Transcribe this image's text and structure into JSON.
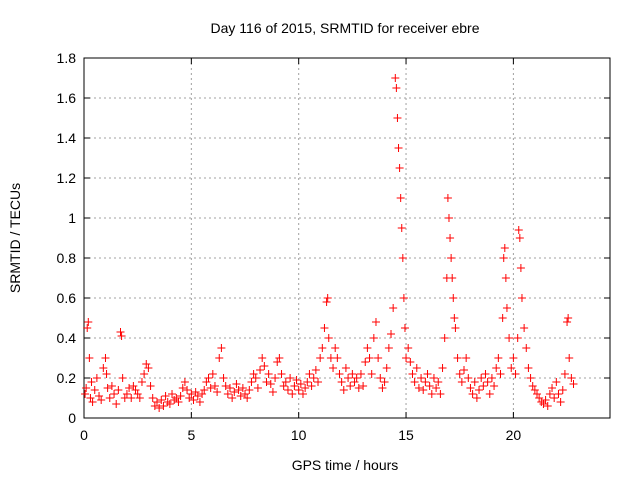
{
  "chart_data": {
    "type": "scatter",
    "title": "Day 116 of 2015, SRMTID for receiver ebre",
    "xlabel": "GPS time / hours",
    "ylabel": "SRMTID / TECUs",
    "xlim": [
      0,
      24.5
    ],
    "ylim": [
      0,
      1.8
    ],
    "xticks": [
      0,
      5,
      10,
      15,
      20
    ],
    "xtick_labels": [
      "0",
      "5",
      "10",
      "15",
      "20"
    ],
    "yticks": [
      0,
      0.2,
      0.4,
      0.6,
      0.8,
      1.0,
      1.2,
      1.4,
      1.6,
      1.8
    ],
    "ytick_labels": [
      "0",
      "0.2",
      "0.4",
      "0.6",
      "0.8",
      "1",
      "1.2",
      "1.4",
      "1.6",
      "1.8"
    ],
    "grid": true,
    "marker": "+",
    "color": "#ff0000",
    "series": [
      {
        "name": "SRMTID",
        "points": [
          [
            0.05,
            0.12
          ],
          [
            0.1,
            0.15
          ],
          [
            0.15,
            0.45
          ],
          [
            0.2,
            0.48
          ],
          [
            0.25,
            0.3
          ],
          [
            0.3,
            0.1
          ],
          [
            0.35,
            0.18
          ],
          [
            0.4,
            0.08
          ],
          [
            0.5,
            0.14
          ],
          [
            0.6,
            0.2
          ],
          [
            0.7,
            0.11
          ],
          [
            0.8,
            0.09
          ],
          [
            0.9,
            0.25
          ],
          [
            1.0,
            0.3
          ],
          [
            1.05,
            0.22
          ],
          [
            1.1,
            0.15
          ],
          [
            1.2,
            0.1
          ],
          [
            1.3,
            0.16
          ],
          [
            1.4,
            0.12
          ],
          [
            1.5,
            0.07
          ],
          [
            1.6,
            0.14
          ],
          [
            1.7,
            0.43
          ],
          [
            1.75,
            0.41
          ],
          [
            1.8,
            0.2
          ],
          [
            1.9,
            0.1
          ],
          [
            2.0,
            0.12
          ],
          [
            2.1,
            0.15
          ],
          [
            2.2,
            0.1
          ],
          [
            2.3,
            0.16
          ],
          [
            2.4,
            0.14
          ],
          [
            2.5,
            0.12
          ],
          [
            2.6,
            0.1
          ],
          [
            2.7,
            0.18
          ],
          [
            2.8,
            0.22
          ],
          [
            2.9,
            0.27
          ],
          [
            3.0,
            0.25
          ],
          [
            3.1,
            0.16
          ],
          [
            3.2,
            0.1
          ],
          [
            3.3,
            0.06
          ],
          [
            3.4,
            0.08
          ],
          [
            3.5,
            0.05
          ],
          [
            3.6,
            0.09
          ],
          [
            3.7,
            0.06
          ],
          [
            3.8,
            0.11
          ],
          [
            3.9,
            0.08
          ],
          [
            4.0,
            0.07
          ],
          [
            4.1,
            0.12
          ],
          [
            4.2,
            0.09
          ],
          [
            4.3,
            0.1
          ],
          [
            4.4,
            0.08
          ],
          [
            4.5,
            0.11
          ],
          [
            4.6,
            0.15
          ],
          [
            4.7,
            0.18
          ],
          [
            4.8,
            0.14
          ],
          [
            4.9,
            0.1
          ],
          [
            5.0,
            0.12
          ],
          [
            5.1,
            0.09
          ],
          [
            5.2,
            0.13
          ],
          [
            5.3,
            0.11
          ],
          [
            5.4,
            0.08
          ],
          [
            5.5,
            0.12
          ],
          [
            5.6,
            0.14
          ],
          [
            5.7,
            0.18
          ],
          [
            5.8,
            0.2
          ],
          [
            5.9,
            0.15
          ],
          [
            6.0,
            0.22
          ],
          [
            6.1,
            0.16
          ],
          [
            6.2,
            0.13
          ],
          [
            6.3,
            0.3
          ],
          [
            6.4,
            0.35
          ],
          [
            6.5,
            0.2
          ],
          [
            6.6,
            0.16
          ],
          [
            6.7,
            0.12
          ],
          [
            6.8,
            0.15
          ],
          [
            6.9,
            0.1
          ],
          [
            7.0,
            0.13
          ],
          [
            7.1,
            0.17
          ],
          [
            7.2,
            0.14
          ],
          [
            7.3,
            0.11
          ],
          [
            7.4,
            0.15
          ],
          [
            7.5,
            0.12
          ],
          [
            7.6,
            0.1
          ],
          [
            7.7,
            0.14
          ],
          [
            7.8,
            0.18
          ],
          [
            7.9,
            0.22
          ],
          [
            8.0,
            0.2
          ],
          [
            8.1,
            0.15
          ],
          [
            8.2,
            0.24
          ],
          [
            8.3,
            0.3
          ],
          [
            8.4,
            0.26
          ],
          [
            8.5,
            0.18
          ],
          [
            8.6,
            0.22
          ],
          [
            8.7,
            0.17
          ],
          [
            8.8,
            0.13
          ],
          [
            8.9,
            0.2
          ],
          [
            9.0,
            0.28
          ],
          [
            9.1,
            0.3
          ],
          [
            9.2,
            0.22
          ],
          [
            9.3,
            0.16
          ],
          [
            9.4,
            0.18
          ],
          [
            9.5,
            0.14
          ],
          [
            9.6,
            0.2
          ],
          [
            9.7,
            0.12
          ],
          [
            9.8,
            0.16
          ],
          [
            9.9,
            0.19
          ],
          [
            10.0,
            0.14
          ],
          [
            10.1,
            0.17
          ],
          [
            10.2,
            0.12
          ],
          [
            10.3,
            0.15
          ],
          [
            10.4,
            0.18
          ],
          [
            10.5,
            0.22
          ],
          [
            10.6,
            0.16
          ],
          [
            10.7,
            0.2
          ],
          [
            10.8,
            0.24
          ],
          [
            10.9,
            0.18
          ],
          [
            11.0,
            0.3
          ],
          [
            11.1,
            0.35
          ],
          [
            11.2,
            0.45
          ],
          [
            11.3,
            0.58
          ],
          [
            11.35,
            0.6
          ],
          [
            11.4,
            0.4
          ],
          [
            11.5,
            0.3
          ],
          [
            11.6,
            0.25
          ],
          [
            11.7,
            0.35
          ],
          [
            11.8,
            0.3
          ],
          [
            11.9,
            0.22
          ],
          [
            12.0,
            0.18
          ],
          [
            12.1,
            0.14
          ],
          [
            12.2,
            0.25
          ],
          [
            12.3,
            0.2
          ],
          [
            12.4,
            0.16
          ],
          [
            12.5,
            0.22
          ],
          [
            12.6,
            0.18
          ],
          [
            12.7,
            0.2
          ],
          [
            12.8,
            0.15
          ],
          [
            12.9,
            0.22
          ],
          [
            13.0,
            0.16
          ],
          [
            13.1,
            0.28
          ],
          [
            13.2,
            0.35
          ],
          [
            13.3,
            0.3
          ],
          [
            13.4,
            0.22
          ],
          [
            13.5,
            0.4
          ],
          [
            13.6,
            0.48
          ],
          [
            13.7,
            0.3
          ],
          [
            13.8,
            0.2
          ],
          [
            13.9,
            0.15
          ],
          [
            14.0,
            0.18
          ],
          [
            14.1,
            0.25
          ],
          [
            14.2,
            0.35
          ],
          [
            14.3,
            0.42
          ],
          [
            14.4,
            0.55
          ],
          [
            14.5,
            1.7
          ],
          [
            14.55,
            1.65
          ],
          [
            14.6,
            1.5
          ],
          [
            14.65,
            1.35
          ],
          [
            14.7,
            1.25
          ],
          [
            14.75,
            1.1
          ],
          [
            14.8,
            0.95
          ],
          [
            14.85,
            0.8
          ],
          [
            14.9,
            0.6
          ],
          [
            14.95,
            0.45
          ],
          [
            15.0,
            0.3
          ],
          [
            15.1,
            0.35
          ],
          [
            15.2,
            0.28
          ],
          [
            15.3,
            0.22
          ],
          [
            15.4,
            0.18
          ],
          [
            15.5,
            0.25
          ],
          [
            15.6,
            0.15
          ],
          [
            15.7,
            0.2
          ],
          [
            15.8,
            0.14
          ],
          [
            15.9,
            0.18
          ],
          [
            16.0,
            0.22
          ],
          [
            16.1,
            0.16
          ],
          [
            16.2,
            0.12
          ],
          [
            16.3,
            0.2
          ],
          [
            16.4,
            0.15
          ],
          [
            16.5,
            0.18
          ],
          [
            16.6,
            0.12
          ],
          [
            16.7,
            0.25
          ],
          [
            16.8,
            0.4
          ],
          [
            16.9,
            0.7
          ],
          [
            16.95,
            1.1
          ],
          [
            17.0,
            1.0
          ],
          [
            17.05,
            0.9
          ],
          [
            17.1,
            0.8
          ],
          [
            17.15,
            0.7
          ],
          [
            17.2,
            0.6
          ],
          [
            17.25,
            0.5
          ],
          [
            17.3,
            0.45
          ],
          [
            17.4,
            0.3
          ],
          [
            17.5,
            0.22
          ],
          [
            17.6,
            0.18
          ],
          [
            17.7,
            0.24
          ],
          [
            17.8,
            0.3
          ],
          [
            17.9,
            0.2
          ],
          [
            18.0,
            0.15
          ],
          [
            18.1,
            0.12
          ],
          [
            18.2,
            0.18
          ],
          [
            18.3,
            0.1
          ],
          [
            18.4,
            0.14
          ],
          [
            18.5,
            0.2
          ],
          [
            18.6,
            0.16
          ],
          [
            18.7,
            0.22
          ],
          [
            18.8,
            0.18
          ],
          [
            18.9,
            0.12
          ],
          [
            19.0,
            0.2
          ],
          [
            19.1,
            0.16
          ],
          [
            19.2,
            0.25
          ],
          [
            19.3,
            0.3
          ],
          [
            19.4,
            0.22
          ],
          [
            19.5,
            0.5
          ],
          [
            19.55,
            0.8
          ],
          [
            19.6,
            0.85
          ],
          [
            19.65,
            0.7
          ],
          [
            19.7,
            0.55
          ],
          [
            19.8,
            0.4
          ],
          [
            19.9,
            0.25
          ],
          [
            20.0,
            0.3
          ],
          [
            20.1,
            0.22
          ],
          [
            20.2,
            0.4
          ],
          [
            20.25,
            0.94
          ],
          [
            20.3,
            0.9
          ],
          [
            20.35,
            0.75
          ],
          [
            20.4,
            0.6
          ],
          [
            20.5,
            0.45
          ],
          [
            20.6,
            0.35
          ],
          [
            20.7,
            0.25
          ],
          [
            20.8,
            0.2
          ],
          [
            20.9,
            0.16
          ],
          [
            21.0,
            0.14
          ],
          [
            21.1,
            0.12
          ],
          [
            21.2,
            0.1
          ],
          [
            21.3,
            0.08
          ],
          [
            21.4,
            0.07
          ],
          [
            21.5,
            0.09
          ],
          [
            21.6,
            0.06
          ],
          [
            21.7,
            0.12
          ],
          [
            21.8,
            0.15
          ],
          [
            21.9,
            0.1
          ],
          [
            22.0,
            0.18
          ],
          [
            22.1,
            0.12
          ],
          [
            22.2,
            0.08
          ],
          [
            22.3,
            0.14
          ],
          [
            22.4,
            0.22
          ],
          [
            22.5,
            0.48
          ],
          [
            22.55,
            0.5
          ],
          [
            22.6,
            0.3
          ],
          [
            22.7,
            0.2
          ],
          [
            22.8,
            0.17
          ]
        ]
      }
    ]
  }
}
